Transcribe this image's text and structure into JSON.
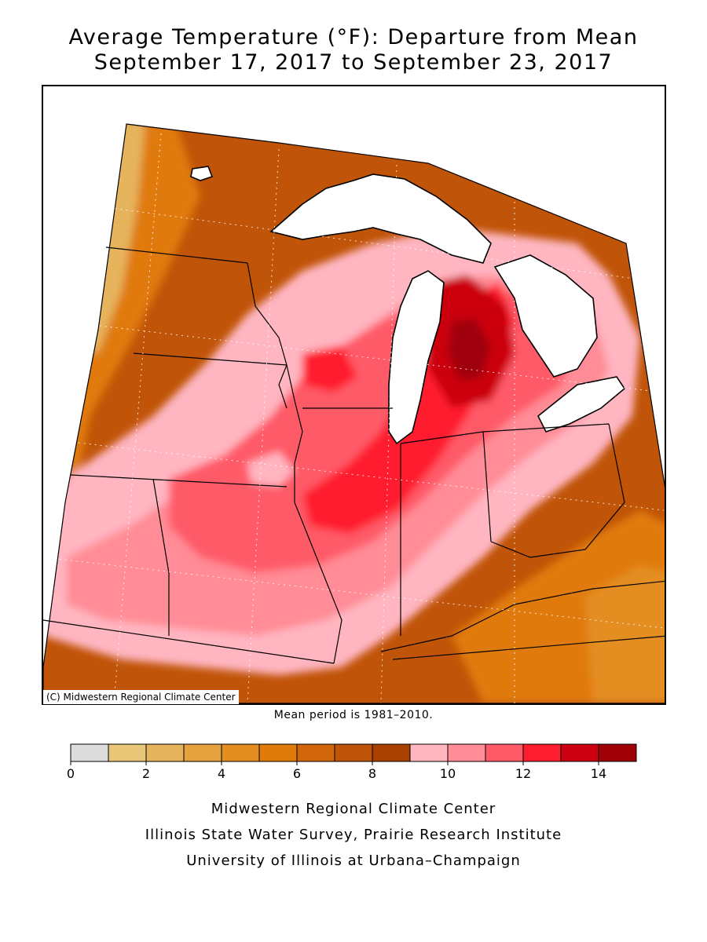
{
  "title": {
    "line1": "Average Temperature (°F): Departure from Mean",
    "line2": "September 17, 2017 to September 23, 2017"
  },
  "map": {
    "copyright": "(C) Midwestern Regional Climate Center",
    "mean_period": "Mean period is 1981–2010.",
    "hotspots": [
      {
        "name": "lower-michigan-peak",
        "departure": 14
      },
      {
        "name": "indiana-ohio-core",
        "departure": 12
      },
      {
        "name": "central-wisconsin",
        "departure": 12
      },
      {
        "name": "iowa-missouri",
        "departure": 10
      },
      {
        "name": "minnesota-northwest",
        "departure": 3
      },
      {
        "name": "kentucky-east",
        "departure": 6
      }
    ]
  },
  "legend": {
    "colors": [
      "#dcdcdc",
      "#e8c878",
      "#e6b45c",
      "#e5a23e",
      "#e48e22",
      "#e07a08",
      "#d2660a",
      "#c05408",
      "#a84000",
      "#ffb6c1",
      "#ff8c96",
      "#ff5a68",
      "#ff1e2e",
      "#cc0010",
      "#a00008"
    ],
    "min": 0,
    "max": 15,
    "ticks": [
      {
        "value": 0,
        "label": "0"
      },
      {
        "value": 2,
        "label": "2"
      },
      {
        "value": 4,
        "label": "4"
      },
      {
        "value": 6,
        "label": "6"
      },
      {
        "value": 8,
        "label": "8"
      },
      {
        "value": 10,
        "label": "10"
      },
      {
        "value": 12,
        "label": "12"
      },
      {
        "value": 14,
        "label": "14"
      }
    ]
  },
  "credits": {
    "line1": "Midwestern Regional Climate Center",
    "line2": "Illinois State Water Survey, Prairie Research Institute",
    "line3": "University of Illinois at Urbana–Champaign"
  }
}
